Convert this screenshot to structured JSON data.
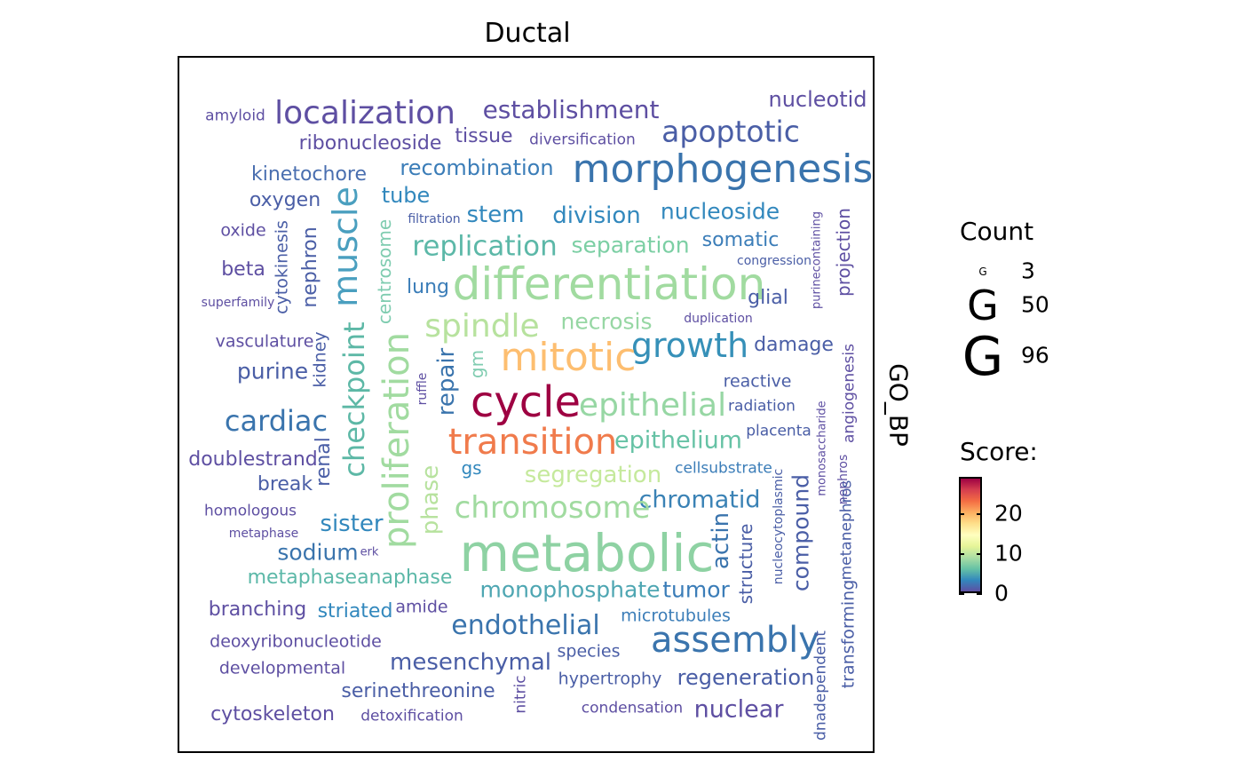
{
  "panel": {
    "title": "Ductal",
    "strip_label": "GO_BP"
  },
  "legend": {
    "count_title": "Count",
    "count_items": [
      {
        "glyph": "G",
        "value": "3"
      },
      {
        "glyph": "G",
        "value": "50"
      },
      {
        "glyph": "G",
        "value": "96"
      }
    ],
    "score_title": "Score:",
    "score_ticks": [
      "20",
      "10",
      "0"
    ]
  },
  "chart_data": {
    "type": "wordcloud",
    "title": "Ductal",
    "facet": "GO_BP",
    "size_legend": {
      "title": "Count",
      "breaks": [
        3,
        50,
        96
      ]
    },
    "color_legend": {
      "title": "Score:",
      "breaks": [
        0,
        10,
        20
      ],
      "range": [
        0,
        27
      ],
      "palette": [
        "#5e4fa2",
        "#3288bd",
        "#66c2a5",
        "#abdda4",
        "#e6f598",
        "#ffffbf",
        "#fee08b",
        "#fdae61",
        "#f46d43",
        "#d53e4f",
        "#9e0142"
      ]
    },
    "words": [
      {
        "text": "amyloid",
        "color": "#5e4fa2"
      },
      {
        "text": "localization",
        "color": "#5e4fa2"
      },
      {
        "text": "establishment",
        "color": "#5e4fa2"
      },
      {
        "text": "nucleotid",
        "color": "#5e4fa2"
      },
      {
        "text": "ribonucleoside",
        "color": "#5e4fa2"
      },
      {
        "text": "tissue",
        "color": "#5e4fa2"
      },
      {
        "text": "diversification",
        "color": "#5e4fa2"
      },
      {
        "text": "apoptotic",
        "color": "#4a5ea6"
      },
      {
        "text": "kinetochore",
        "color": "#4a6fb0"
      },
      {
        "text": "recombination",
        "color": "#3b7db8"
      },
      {
        "text": "morphogenesis",
        "color": "#3a74ad"
      },
      {
        "text": "oxygen",
        "color": "#4a5ea6"
      },
      {
        "text": "tube",
        "color": "#3288bd"
      },
      {
        "text": "muscle",
        "color": "#4a9fbf"
      },
      {
        "text": "filtration",
        "color": "#4a5ea6"
      },
      {
        "text": "stem",
        "color": "#3288bd"
      },
      {
        "text": "division",
        "color": "#3288bd"
      },
      {
        "text": "nucleoside",
        "color": "#3288bd"
      },
      {
        "text": "oxide",
        "color": "#5e4fa2"
      },
      {
        "text": "cytokinesis",
        "color": "#4a5ea6"
      },
      {
        "text": "nephron",
        "color": "#4a5ea6"
      },
      {
        "text": "centrosome",
        "color": "#7fccb0"
      },
      {
        "text": "replication",
        "color": "#5cb8a8"
      },
      {
        "text": "separation",
        "color": "#7ccfa4"
      },
      {
        "text": "somatic",
        "color": "#3b7db8"
      },
      {
        "text": "purinecontaining",
        "color": "#5e4fa2"
      },
      {
        "text": "projection",
        "color": "#5e4fa2"
      },
      {
        "text": "beta",
        "color": "#5e4fa2"
      },
      {
        "text": "congression",
        "color": "#4a5ea6"
      },
      {
        "text": "differentiation",
        "color": "#a1dba0"
      },
      {
        "text": "lung",
        "color": "#3b7db8"
      },
      {
        "text": "superfamily",
        "color": "#5e4fa2"
      },
      {
        "text": "glial",
        "color": "#4a5ea6"
      },
      {
        "text": "spindle",
        "color": "#b7e29e"
      },
      {
        "text": "necrosis",
        "color": "#97d7a4"
      },
      {
        "text": "duplication",
        "color": "#5e4fa2"
      },
      {
        "text": "vasculature",
        "color": "#5e4fa2"
      },
      {
        "text": "checkpoint",
        "color": "#5db8a6"
      },
      {
        "text": "proliferation",
        "color": "#a1dba0"
      },
      {
        "text": "growth",
        "color": "#3690b8"
      },
      {
        "text": "damage",
        "color": "#4a5ea6"
      },
      {
        "text": "mitotic",
        "color": "#fdbe70"
      },
      {
        "text": "kidney",
        "color": "#4a5ea6"
      },
      {
        "text": "purine",
        "color": "#4a5ea6"
      },
      {
        "text": "repair",
        "color": "#3a74ad"
      },
      {
        "text": "gm",
        "color": "#7fccb0"
      },
      {
        "text": "ruffle",
        "color": "#5e4fa2"
      },
      {
        "text": "reactive",
        "color": "#4a5ea6"
      },
      {
        "text": "angiogenesis",
        "color": "#5e4fa2"
      },
      {
        "text": "cycle",
        "color": "#9e0142"
      },
      {
        "text": "epithelial",
        "color": "#97d7a4"
      },
      {
        "text": "cardiac",
        "color": "#3a74ad"
      },
      {
        "text": "radiation",
        "color": "#4a5ea6"
      },
      {
        "text": "monosaccharide",
        "color": "#5e4fa2"
      },
      {
        "text": "renal",
        "color": "#4a5ea6"
      },
      {
        "text": "transition",
        "color": "#f07b4c"
      },
      {
        "text": "placenta",
        "color": "#4a5ea6"
      },
      {
        "text": "epithelium",
        "color": "#66c2a5"
      },
      {
        "text": "doublestrand",
        "color": "#5e4fa2"
      },
      {
        "text": "cellsubstrate",
        "color": "#3b7db8"
      },
      {
        "text": "gs",
        "color": "#3288bd"
      },
      {
        "text": "segregation",
        "color": "#c5e99c"
      },
      {
        "text": "nephros",
        "color": "#5e4fa2"
      },
      {
        "text": "break",
        "color": "#4a5ea6"
      },
      {
        "text": "phase",
        "color": "#b7e29e"
      },
      {
        "text": "compound",
        "color": "#4a5ea6"
      },
      {
        "text": "chromatid",
        "color": "#3a82b5"
      },
      {
        "text": "homologous",
        "color": "#5e4fa2"
      },
      {
        "text": "chromosome",
        "color": "#a1dba0"
      },
      {
        "text": "nucleocytoplasmic",
        "color": "#4a5ea6"
      },
      {
        "text": "metaphase",
        "color": "#5e4fa2"
      },
      {
        "text": "sister",
        "color": "#3288bd"
      },
      {
        "text": "actin",
        "color": "#3a74ad"
      },
      {
        "text": "erk",
        "color": "#5e4fa2"
      },
      {
        "text": "metabolic",
        "color": "#8ed2a3"
      },
      {
        "text": "structure",
        "color": "#4a5ea6"
      },
      {
        "text": "metanephros",
        "color": "#4a5ea6"
      },
      {
        "text": "sodium",
        "color": "#3a74ad"
      },
      {
        "text": "metaphaseanaphase",
        "color": "#5cb8a8"
      },
      {
        "text": "monophosphate",
        "color": "#4ea6b2"
      },
      {
        "text": "tumor",
        "color": "#3b7db8"
      },
      {
        "text": "branching",
        "color": "#5e4fa2"
      },
      {
        "text": "striated",
        "color": "#3288bd"
      },
      {
        "text": "amide",
        "color": "#5e4fa2"
      },
      {
        "text": "microtubules",
        "color": "#3b7db8"
      },
      {
        "text": "transforming",
        "color": "#4a5ea6"
      },
      {
        "text": "endothelial",
        "color": "#3a74ad"
      },
      {
        "text": "assembly",
        "color": "#3a74ad"
      },
      {
        "text": "deoxyribonucleotide",
        "color": "#5e4fa2"
      },
      {
        "text": "species",
        "color": "#4a5ea6"
      },
      {
        "text": "dnadependent",
        "color": "#4a5ea6"
      },
      {
        "text": "developmental",
        "color": "#5e4fa2"
      },
      {
        "text": "mesenchymal",
        "color": "#4a5ea6"
      },
      {
        "text": "hypertrophy",
        "color": "#4a5ea6"
      },
      {
        "text": "regeneration",
        "color": "#4a5ea6"
      },
      {
        "text": "serinethreonine",
        "color": "#4a5ea6"
      },
      {
        "text": "nitric",
        "color": "#5e4fa2"
      },
      {
        "text": "cytoskeleton",
        "color": "#5e4fa2"
      },
      {
        "text": "detoxification",
        "color": "#5e4fa2"
      },
      {
        "text": "condensation",
        "color": "#5e4fa2"
      },
      {
        "text": "nuclear",
        "color": "#5e4fa2"
      }
    ]
  }
}
